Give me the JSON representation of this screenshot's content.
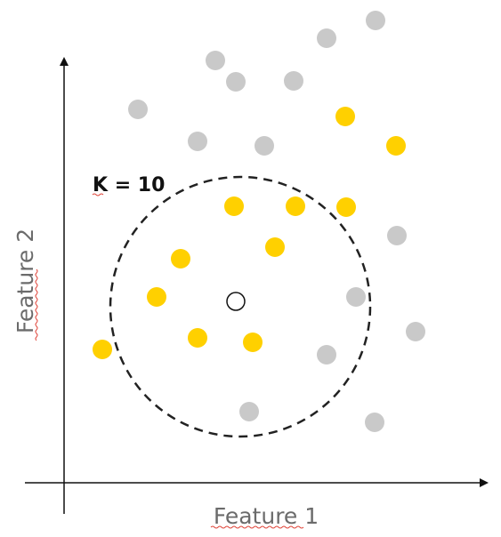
{
  "diagram": {
    "k_label": "K = 10",
    "x_axis_label": "Feature 1",
    "y_axis_label": "Feature 2",
    "colors": {
      "axis": "#111111",
      "yellow_point": "#FFD000",
      "gray_point": "#C9C9C9",
      "query_point_fill": "#FFFFFF",
      "query_point_stroke": "#111111",
      "circle": "#222222",
      "label_text": "#6b6b6b"
    },
    "query_point": {
      "role": "new data point",
      "shape": "hollow circle"
    },
    "neighborhood": {
      "style": "dashed circle",
      "k": 10
    },
    "points": [
      {
        "class": "gray"
      },
      {
        "class": "gray"
      },
      {
        "class": "gray"
      },
      {
        "class": "gray"
      },
      {
        "class": "gray"
      },
      {
        "class": "gray"
      },
      {
        "class": "gray"
      },
      {
        "class": "gray"
      },
      {
        "class": "gray"
      },
      {
        "class": "gray"
      },
      {
        "class": "gray"
      },
      {
        "class": "gray"
      },
      {
        "class": "gray"
      },
      {
        "class": "gray"
      },
      {
        "class": "yellow"
      },
      {
        "class": "yellow"
      },
      {
        "class": "yellow"
      },
      {
        "class": "yellow"
      },
      {
        "class": "yellow"
      },
      {
        "class": "yellow"
      },
      {
        "class": "yellow"
      },
      {
        "class": "yellow"
      },
      {
        "class": "yellow"
      },
      {
        "class": "yellow"
      },
      {
        "class": "yellow"
      }
    ]
  }
}
